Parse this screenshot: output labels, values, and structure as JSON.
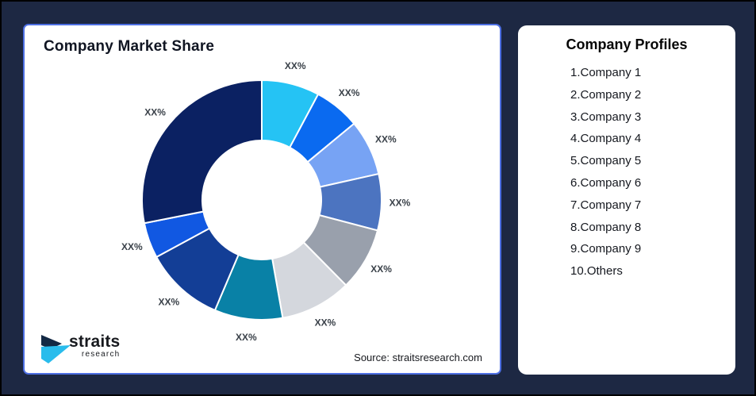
{
  "page": {
    "background_color": "#1D2843",
    "frame_border_color": "#000000"
  },
  "chart_card": {
    "title": "Company Market Share",
    "border_color": "#4D6FE3",
    "source_text": "Source: straitsresearch.com",
    "logo": {
      "name": "straits",
      "sub": "research",
      "icon": "straits-arrow-icon",
      "icon_navy": "#132944",
      "icon_cyan": "#29BCEC"
    }
  },
  "profiles_card": {
    "title": "Company Profiles",
    "items": [
      "1.Company 1",
      "2.Company 2",
      "3.Company 3",
      "4.Company 4",
      "5.Company 5",
      "6.Company 6",
      "7.Company 7",
      "8.Company 8",
      "9.Company 9",
      "10.Others"
    ]
  },
  "chart_data": {
    "type": "pie",
    "subtype": "donut",
    "title": "Company Market Share",
    "legend_position": "none",
    "direction": "clockwise",
    "start_angle_deg": 0,
    "inner_radius_ratio": 0.5,
    "categories": [
      "Company 1",
      "Company 2",
      "Company 3",
      "Company 4",
      "Company 5",
      "Company 6",
      "Company 7",
      "Company 8",
      "Company 9",
      "Others"
    ],
    "labels": [
      "XX%",
      "XX%",
      "XX%",
      "XX%",
      "XX%",
      "XX%",
      "XX%",
      "XX%",
      "XX%",
      "XX%"
    ],
    "values_note": "slice labels are placeholder XX%; values are percent shares estimated from arc angles, listed clockwise from 12 o'clock",
    "values": [
      7.8,
      6.2,
      7.5,
      7.6,
      8.5,
      9.6,
      9.2,
      10.7,
      4.8,
      28.1
    ],
    "colors": [
      "#25C3F4",
      "#0A6AF0",
      "#77A3F4",
      "#4C74C0",
      "#99A0AC",
      "#D4D7DD",
      "#0981A6",
      "#133E96",
      "#1158E2",
      "#0B2162"
    ],
    "gap_color": "#FFFFFF",
    "label_color": "#3A4149"
  }
}
